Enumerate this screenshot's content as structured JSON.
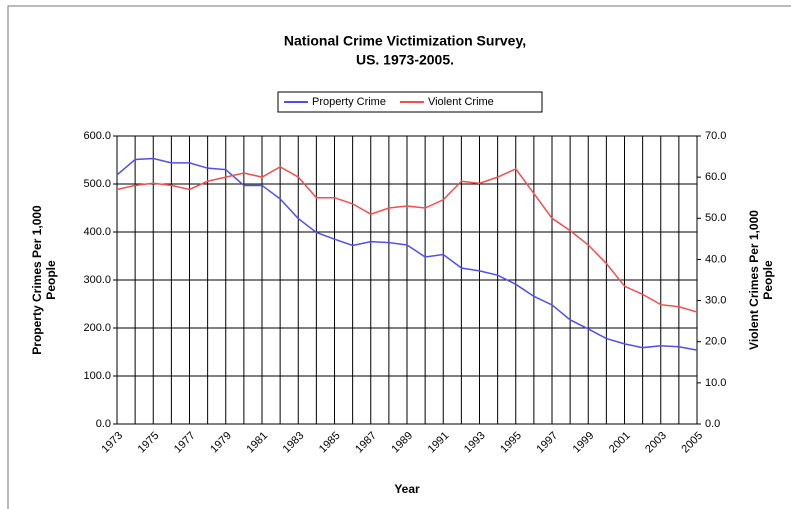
{
  "chart_data": {
    "type": "line",
    "title": [
      "National Crime Victimization Survey,",
      "US. 1973-2005."
    ],
    "xlabel": "Year",
    "ylabel": [
      "Property Crimes Per 1,000",
      "People"
    ],
    "y2label": [
      "Violent Crimes Per 1,000",
      "People"
    ],
    "categories": [
      "1973",
      null,
      "1975",
      null,
      "1977",
      null,
      "1979",
      null,
      "1981",
      null,
      "1983",
      null,
      "1985",
      null,
      "1987",
      null,
      "1989",
      null,
      "1991",
      null,
      "1993",
      null,
      "1995",
      null,
      "1997",
      null,
      "1999",
      null,
      "2001",
      null,
      "2003",
      null,
      "2005"
    ],
    "series": [
      {
        "name": "Property Crime",
        "color": "#4f4ff0",
        "values": [
          519,
          551,
          553,
          544,
          544,
          533,
          530,
          497,
          497,
          469,
          428,
          399,
          385,
          372,
          380,
          378,
          373,
          348,
          353,
          325,
          319,
          310,
          291,
          266,
          248,
          217,
          198,
          178,
          167,
          159,
          163,
          161,
          154
        ]
      },
      {
        "name": "Violent Crime",
        "color": "#f05050",
        "axis": "y2",
        "values": [
          57.0,
          58.0,
          58.5,
          58.0,
          57.0,
          59.0,
          60.0,
          61.0,
          60.0,
          62.5,
          60.0,
          55.0,
          55.0,
          53.5,
          51.0,
          52.5,
          53.0,
          52.5,
          54.5,
          59.0,
          58.5,
          60.0,
          62.0,
          56.0,
          50.0,
          47.0,
          43.5,
          39.0,
          33.5,
          31.5,
          29.0,
          28.5,
          27.2
        ]
      }
    ],
    "ylim": [
      0,
      600
    ],
    "yticks": [
      {
        "value": 0,
        "label": "0.0"
      },
      {
        "value": 100,
        "label": "100.0"
      },
      {
        "value": 200,
        "label": "200.0"
      },
      {
        "value": 300,
        "label": "300.0"
      },
      {
        "value": 400,
        "label": "400.0"
      },
      {
        "value": 500,
        "label": "500.0"
      },
      {
        "value": 600,
        "label": "600.0"
      }
    ],
    "y2lim": [
      0,
      70
    ],
    "y2ticks": [
      {
        "value": 0,
        "label": "0.0"
      },
      {
        "value": 10,
        "label": "10.0"
      },
      {
        "value": 20,
        "label": "20.0"
      },
      {
        "value": 30,
        "label": "30.0"
      },
      {
        "value": 40,
        "label": "40.0"
      },
      {
        "value": 50,
        "label": "50.0"
      },
      {
        "value": 60,
        "label": "60.0"
      },
      {
        "value": 70,
        "label": "70.0"
      }
    ],
    "grid": true,
    "legend": "top"
  }
}
